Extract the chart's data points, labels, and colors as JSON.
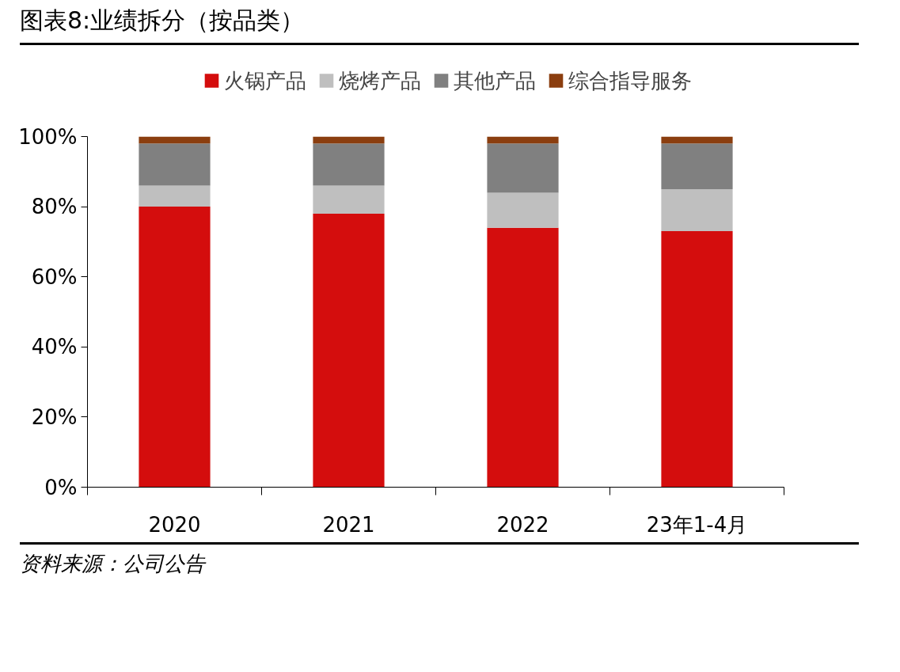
{
  "chart_data": {
    "type": "bar",
    "title": "图表8:业绩拆分（按品类）",
    "categories": [
      "2020",
      "2021",
      "2022",
      "23年1-4月"
    ],
    "stacked": true,
    "series": [
      {
        "name": "火锅产品",
        "color": "#d40d0d",
        "values": [
          80,
          78,
          74,
          73
        ]
      },
      {
        "name": "烧烤产品",
        "color": "#bfbfbf",
        "values": [
          6,
          8,
          10,
          12
        ]
      },
      {
        "name": "其他产品",
        "color": "#808080",
        "values": [
          12,
          12,
          14,
          13
        ]
      },
      {
        "name": "综合指导服务",
        "color": "#8b3e0f",
        "values": [
          2,
          2,
          2,
          2
        ]
      }
    ],
    "ylim": [
      0,
      100
    ],
    "yticks": [
      {
        "value": 0,
        "label": "0%"
      },
      {
        "value": 20,
        "label": "20%"
      },
      {
        "value": 40,
        "label": "40%"
      },
      {
        "value": 60,
        "label": "60%"
      },
      {
        "value": 80,
        "label": "80%"
      },
      {
        "value": 100,
        "label": "100%"
      }
    ],
    "grid": false,
    "legend": "top",
    "annotations": [
      "资料来源：公司公告"
    ]
  }
}
